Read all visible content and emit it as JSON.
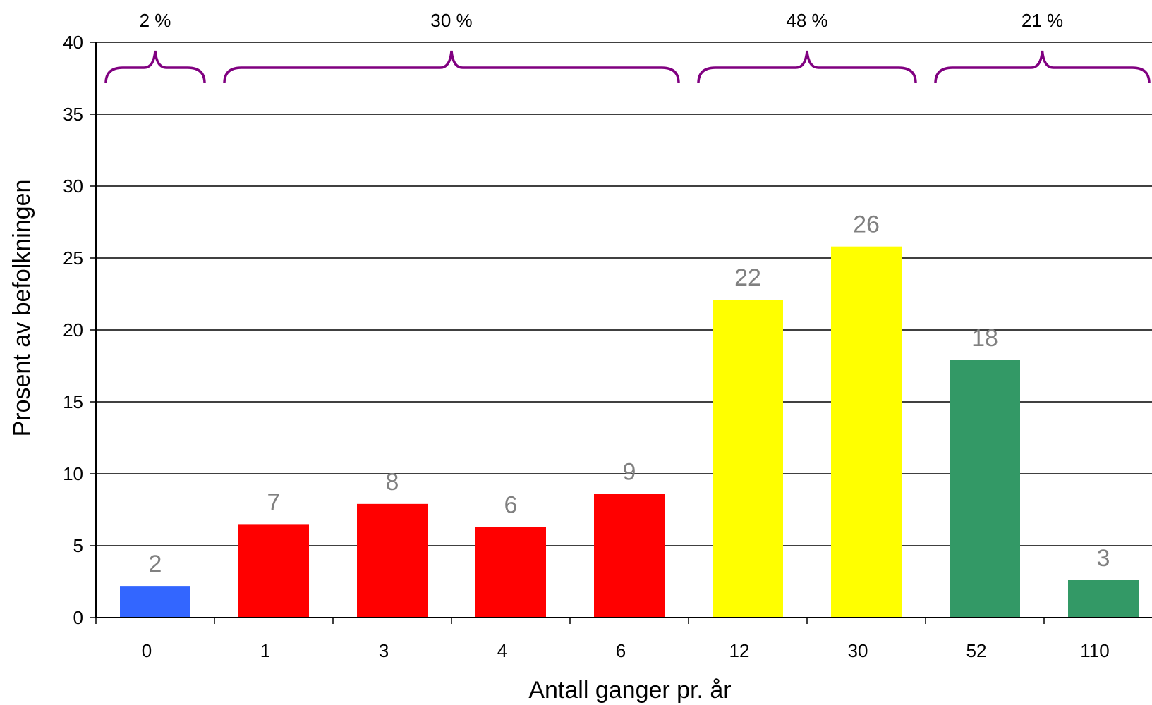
{
  "chart_data": {
    "type": "bar",
    "xlabel": "Antall ganger pr. år",
    "ylabel": "Prosent av befolkningen",
    "ylim": [
      0,
      40
    ],
    "yticks": [
      0,
      5,
      10,
      15,
      20,
      25,
      30,
      35,
      40
    ],
    "grid": true,
    "categories": [
      "0",
      "1",
      "3",
      "4",
      "6",
      "12",
      "30",
      "52",
      "110"
    ],
    "values": [
      2.2,
      6.5,
      7.9,
      6.3,
      8.6,
      22.1,
      25.8,
      17.9,
      2.6
    ],
    "data_labels": [
      "2",
      "7",
      "8",
      "6",
      "9",
      "22",
      "26",
      "18",
      "3"
    ],
    "bar_colors": [
      "#3366ff",
      "#ff0000",
      "#ff0000",
      "#ff0000",
      "#ff0000",
      "#ffff00",
      "#ffff00",
      "#339966",
      "#339966"
    ],
    "groups": [
      {
        "label": "2 %",
        "from": 0,
        "to": 0
      },
      {
        "label": "30 %",
        "from": 1,
        "to": 4
      },
      {
        "label": "48 %",
        "from": 5,
        "to": 6
      },
      {
        "label": "21 %",
        "from": 7,
        "to": 8
      }
    ],
    "brace_color": "#800080"
  }
}
